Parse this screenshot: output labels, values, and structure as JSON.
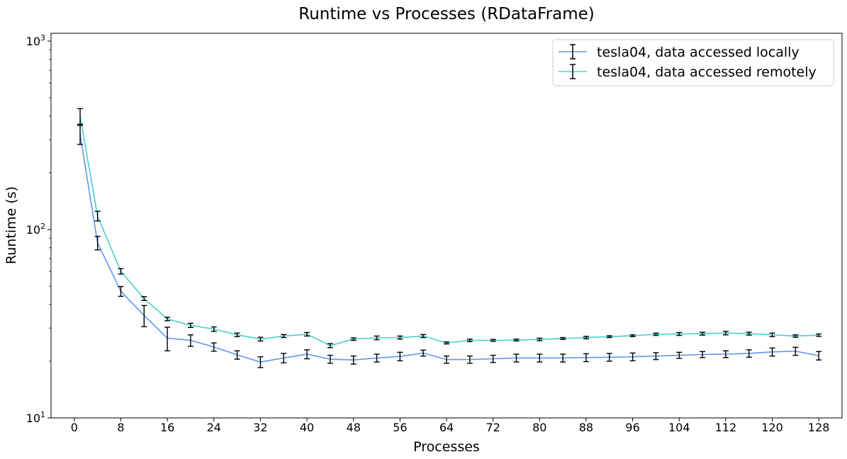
{
  "chart_data": {
    "type": "line",
    "title": "Runtime vs Processes (RDataFrame)",
    "xlabel": "Processes",
    "ylabel": "Runtime (s)",
    "yscale": "log",
    "ylim": [
      10,
      1100
    ],
    "xlim": [
      -4,
      132
    ],
    "xticks": [
      0,
      8,
      16,
      24,
      32,
      40,
      48,
      56,
      64,
      72,
      80,
      88,
      96,
      104,
      112,
      120,
      128
    ],
    "yticks": [
      {
        "value": 10,
        "base": "10",
        "exp": "1"
      },
      {
        "value": 100,
        "base": "10",
        "exp": "2"
      },
      {
        "value": 1000,
        "base": "10",
        "exp": "3"
      }
    ],
    "legend_position": "top-right",
    "grid": false,
    "x": [
      1,
      4,
      8,
      12,
      16,
      20,
      24,
      28,
      32,
      36,
      40,
      44,
      48,
      52,
      56,
      60,
      64,
      68,
      72,
      76,
      80,
      84,
      88,
      92,
      96,
      100,
      104,
      108,
      112,
      116,
      120,
      124,
      128
    ],
    "series": [
      {
        "name": "tesla04, data accessed locally",
        "color": "#6495ed",
        "values": [
          320,
          85,
          47,
          35,
          26.5,
          25.8,
          23.8,
          21.6,
          19.8,
          20.8,
          21.8,
          20.5,
          20.3,
          20.8,
          21.2,
          22.1,
          20.4,
          20.4,
          20.6,
          20.8,
          20.8,
          20.8,
          20.9,
          21.0,
          21.1,
          21.3,
          21.5,
          21.7,
          21.8,
          22.0,
          22.4,
          22.6,
          21.4
        ],
        "errors": [
          37,
          7,
          2.8,
          4.5,
          3.8,
          1.8,
          1.2,
          1.1,
          1.3,
          1.2,
          1.2,
          1.0,
          1.0,
          1.0,
          1.1,
          0.8,
          0.9,
          0.9,
          0.9,
          1.0,
          1.0,
          1.0,
          1.0,
          1.0,
          1.0,
          0.9,
          0.8,
          0.8,
          0.9,
          1.0,
          1.1,
          1.1,
          1.1
        ]
      },
      {
        "name": "tesla04, data accessed remotely",
        "color": "#48d1cc",
        "values": [
          400,
          118,
          60,
          43,
          33.5,
          31,
          29.6,
          27.6,
          26.2,
          27.2,
          27.8,
          24.2,
          26.2,
          26.6,
          26.7,
          27.2,
          25,
          25.8,
          25.8,
          25.9,
          26.1,
          26.4,
          26.7,
          27.0,
          27.3,
          27.8,
          27.9,
          28.0,
          28.2,
          28.0,
          27.6,
          27.2,
          27.5
        ],
        "errors": [
          38,
          7,
          2.0,
          1.0,
          0.7,
          0.8,
          0.8,
          0.6,
          0.6,
          0.5,
          0.6,
          0.6,
          0.4,
          0.6,
          0.5,
          0.5,
          0.3,
          0.4,
          0.3,
          0.3,
          0.4,
          0.3,
          0.4,
          0.3,
          0.3,
          0.4,
          0.5,
          0.5,
          0.6,
          0.5,
          0.6,
          0.4,
          0.4
        ]
      }
    ]
  }
}
